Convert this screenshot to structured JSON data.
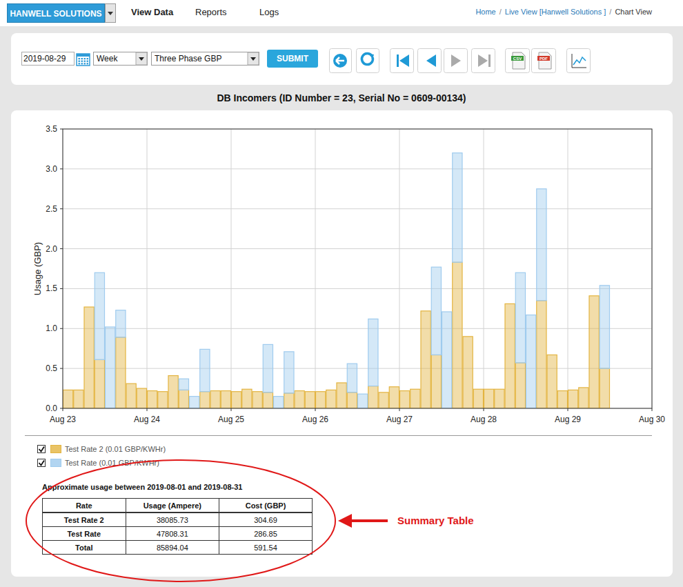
{
  "header": {
    "brand": "HANWELL SOLUTIONS",
    "nav": [
      "View Data",
      "Reports",
      "Logs"
    ],
    "breadcrumb": [
      "Home",
      "Live View [Hanwell Solutions ]",
      "Chart View"
    ],
    "breadcrumb_separator": "/"
  },
  "toolbar": {
    "date": "2019-08-29",
    "period": "Week",
    "measure": "Three Phase GBP",
    "submit": "SUBMIT",
    "export": [
      "CSV",
      "PDF"
    ]
  },
  "chart_data": {
    "type": "bar",
    "title": "DB Incomers (ID Number = 23, Serial No = 0609-00134)",
    "y_label": "Usage (GBP)",
    "categories": [
      "Aug 23",
      null,
      null,
      null,
      null,
      null,
      null,
      null,
      "Aug 24",
      null,
      null,
      null,
      null,
      null,
      null,
      null,
      "Aug 25",
      null,
      null,
      null,
      null,
      null,
      null,
      null,
      "Aug 26",
      null,
      null,
      null,
      null,
      null,
      null,
      null,
      "Aug 27",
      null,
      null,
      null,
      null,
      null,
      null,
      null,
      "Aug 28",
      null,
      null,
      null,
      null,
      null,
      null,
      null,
      "Aug 29",
      null,
      null,
      null,
      null,
      null,
      null,
      null,
      "Aug 30"
    ],
    "series": [
      {
        "name": "Test Rate 2 (0.01 GBP/KWHr)",
        "color": "#e3b440",
        "values": [
          0.23,
          0.23,
          1.27,
          0.61,
          null,
          0.89,
          0.31,
          0.25,
          0.22,
          0.21,
          0.41,
          0.23,
          null,
          0.21,
          0.22,
          0.22,
          0.21,
          0.24,
          0.21,
          0.2,
          null,
          0.19,
          0.22,
          0.21,
          0.21,
          0.23,
          0.32,
          0.2,
          null,
          0.28,
          0.2,
          0.27,
          0.22,
          0.24,
          1.22,
          0.67,
          null,
          1.83,
          0.9,
          0.24,
          0.24,
          0.24,
          1.31,
          0.57,
          null,
          1.35,
          0.67,
          0.22,
          0.23,
          0.26,
          1.41,
          0.5,
          null,
          null,
          null,
          null,
          null
        ]
      },
      {
        "name": "Test Rate (0.01 GBP/KWHr)",
        "color": "#9fcbee",
        "values": [
          null,
          null,
          null,
          1.09,
          1.02,
          0.34,
          null,
          null,
          null,
          null,
          null,
          0.14,
          0.15,
          0.53,
          null,
          null,
          null,
          null,
          null,
          0.6,
          0.15,
          0.52,
          null,
          null,
          null,
          null,
          null,
          0.36,
          0.18,
          0.84,
          null,
          null,
          null,
          null,
          null,
          1.1,
          1.21,
          1.37,
          null,
          null,
          null,
          null,
          null,
          1.13,
          1.17,
          1.4,
          null,
          null,
          null,
          null,
          null,
          1.04,
          null,
          null,
          null,
          null,
          null
        ]
      }
    ],
    "ylim": [
      0,
      3.5
    ],
    "yticks": [
      {
        "value": 0,
        "label": "0.0"
      },
      0.5,
      {
        "value": 1,
        "label": "1.0"
      },
      1.5,
      {
        "value": 2,
        "label": "2.0"
      },
      2.5,
      {
        "value": 3,
        "label": "3.0"
      },
      3.5
    ],
    "grid": true,
    "stacked": true,
    "legend": "bottom"
  },
  "summary": {
    "title": "Approximate usage between 2019-08-01 and 2019-08-31",
    "columns": [
      "Rate",
      "Usage (Ampere)",
      "Cost (GBP)"
    ],
    "rows": [
      [
        "Test Rate 2",
        "38085.73",
        "304.69"
      ],
      [
        "Test Rate",
        "47808.31",
        "286.85"
      ],
      [
        "Total",
        "85894.04",
        "591.54"
      ]
    ]
  },
  "annotation": {
    "label": "Summary Table"
  }
}
